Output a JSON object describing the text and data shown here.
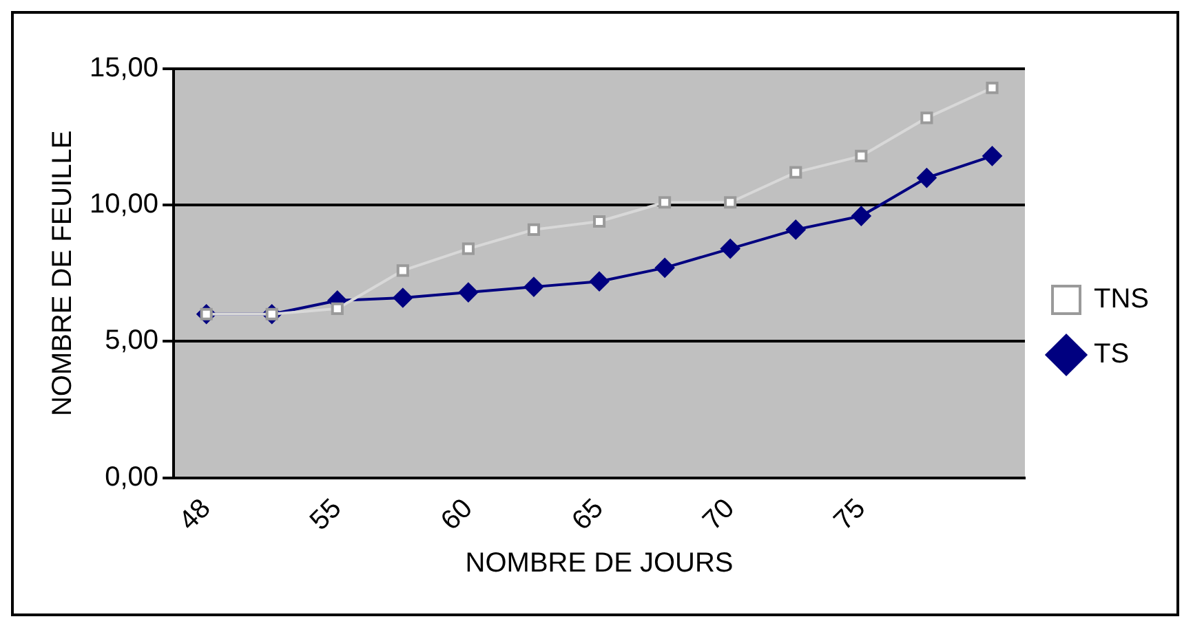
{
  "chart_data": {
    "type": "line",
    "xlabel": "NOMBRE DE JOURS",
    "ylabel": "NOMBRE DE FEUILLE",
    "categories": [
      "48",
      null,
      "55",
      null,
      "60",
      null,
      "65",
      null,
      "70",
      null,
      "75",
      null,
      null
    ],
    "series": [
      {
        "name": "TS",
        "color": "#000080",
        "marker": "diamond",
        "values": [
          6.0,
          6.0,
          6.5,
          6.6,
          6.8,
          7.0,
          7.2,
          7.7,
          8.4,
          9.1,
          9.6,
          11.0,
          11.8
        ]
      },
      {
        "name": "TNS",
        "color": "#ffffff",
        "marker": "square",
        "values": [
          6.0,
          6.0,
          6.2,
          7.6,
          8.4,
          9.1,
          9.4,
          10.1,
          10.1,
          11.2,
          11.8,
          13.2,
          14.3
        ]
      }
    ],
    "ylim": [
      0,
      15
    ],
    "yticks": [
      {
        "value": 0,
        "label": "0,00"
      },
      {
        "value": 5,
        "label": "5,00"
      },
      {
        "value": 10,
        "label": "10,00"
      },
      {
        "value": 15,
        "label": "15,00"
      }
    ],
    "grid": "y",
    "legend": "right"
  }
}
